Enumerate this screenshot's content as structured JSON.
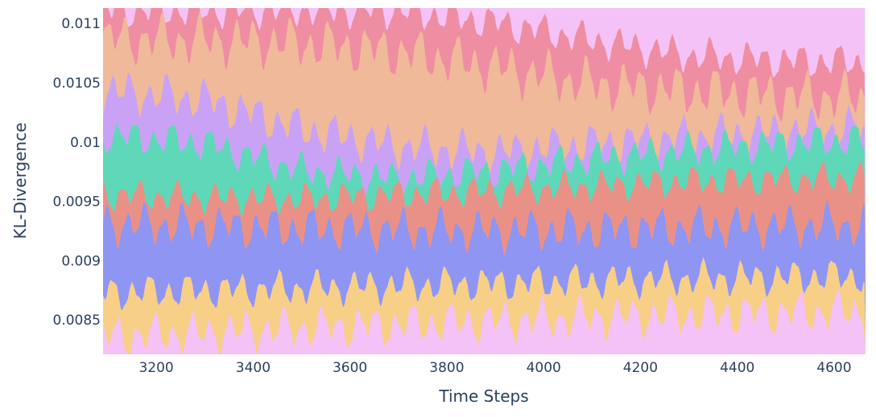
{
  "chart_data": {
    "type": "area",
    "xlabel": "Time Steps",
    "ylabel": "KL-Divergence",
    "xlim": [
      3090,
      4665
    ],
    "ylim": [
      0.00821,
      0.01113
    ],
    "x_ticks": [
      3200,
      3400,
      3600,
      3800,
      4000,
      4200,
      4400,
      4600
    ],
    "y_ticks": [
      0.0085,
      0.009,
      0.0095,
      0.01,
      0.0105,
      0.011
    ],
    "x_tick_labels": [
      "3200",
      "3400",
      "3600",
      "3800",
      "4000",
      "4200",
      "4400",
      "4600"
    ],
    "y_tick_labels": [
      "0.0085",
      "0.009",
      "0.0095",
      "0.01",
      "0.0105",
      "0.011"
    ],
    "grid": false,
    "legend": "none",
    "series_colors": [
      "#ef8da3",
      "#8f95f2",
      "#73d8f0",
      "#f8cf87",
      "#c9a2f6",
      "#5ed8b8",
      "#f0b999",
      "#f4c2f6",
      "#e99187",
      "#c7e7ae"
    ],
    "layers": [
      {
        "color": "#f4c2f6",
        "boundary": [
          [
            3090,
            0.00835
          ],
          [
            3300,
            0.00838
          ],
          [
            3500,
            0.00842
          ],
          [
            3700,
            0.00845
          ],
          [
            3900,
            0.00848
          ],
          [
            4100,
            0.00851
          ],
          [
            4300,
            0.00853
          ],
          [
            4500,
            0.00855
          ],
          [
            4665,
            0.00856
          ]
        ],
        "wiggle": 0.00022
      },
      {
        "color": "#f8cf87",
        "boundary": [
          [
            3090,
            0.00872
          ],
          [
            3300,
            0.00874
          ],
          [
            3500,
            0.00876
          ],
          [
            3700,
            0.00878
          ],
          [
            3900,
            0.0088
          ],
          [
            4100,
            0.00882
          ],
          [
            4300,
            0.00884
          ],
          [
            4500,
            0.00885
          ],
          [
            4665,
            0.00886
          ]
        ],
        "wiggle": 0.00018
      },
      {
        "color": "#8f95f2",
        "boundary": [
          [
            3090,
            0.0093
          ],
          [
            3300,
            0.00928
          ],
          [
            3500,
            0.00926
          ],
          [
            3700,
            0.00925
          ],
          [
            3900,
            0.00924
          ],
          [
            4100,
            0.00925
          ],
          [
            4300,
            0.00927
          ],
          [
            4500,
            0.00928
          ],
          [
            4665,
            0.00929
          ]
        ],
        "wiggle": 0.00022
      },
      {
        "color": "#e99187",
        "boundary": [
          [
            3090,
            0.00955
          ],
          [
            3300,
            0.00952
          ],
          [
            3500,
            0.00951
          ],
          [
            3700,
            0.00955
          ],
          [
            3900,
            0.00958
          ],
          [
            4100,
            0.00962
          ],
          [
            4300,
            0.00966
          ],
          [
            4500,
            0.00968
          ],
          [
            4665,
            0.00969
          ]
        ],
        "wiggle": 0.00016
      },
      {
        "color": "#5ed8b8",
        "boundary": [
          [
            3090,
            0.01005
          ],
          [
            3300,
            0.00998
          ],
          [
            3500,
            0.00975
          ],
          [
            3700,
            0.00968
          ],
          [
            3900,
            0.00975
          ],
          [
            4100,
            0.00985
          ],
          [
            4300,
            0.00992
          ],
          [
            4500,
            0.00998
          ],
          [
            4665,
            0.01001
          ]
        ],
        "wiggle": 0.00018
      },
      {
        "color": "#c9a2f6",
        "boundary": [
          [
            3090,
            0.01042
          ],
          [
            3300,
            0.01035
          ],
          [
            3500,
            0.0101
          ],
          [
            3700,
            0.00995
          ],
          [
            3900,
            0.0099
          ],
          [
            4100,
            0.00997
          ],
          [
            4300,
            0.01003
          ],
          [
            4500,
            0.01008
          ],
          [
            4665,
            0.0101
          ]
        ],
        "wiggle": 0.00022
      },
      {
        "color": "#f0b999",
        "boundary": [
          [
            3090,
            0.01086
          ],
          [
            3300,
            0.01085
          ],
          [
            3500,
            0.01082
          ],
          [
            3700,
            0.01075
          ],
          [
            3900,
            0.01062
          ],
          [
            4100,
            0.01048
          ],
          [
            4300,
            0.01042
          ],
          [
            4500,
            0.01038
          ],
          [
            4665,
            0.01036
          ]
        ],
        "wiggle": 0.00026
      },
      {
        "color": "#ef8da3",
        "boundary": [
          [
            3090,
            0.0111
          ],
          [
            3300,
            0.0111
          ],
          [
            3500,
            0.0111
          ],
          [
            3700,
            0.0111
          ],
          [
            3900,
            0.011
          ],
          [
            4100,
            0.01085
          ],
          [
            4300,
            0.01072
          ],
          [
            4500,
            0.01068
          ],
          [
            4665,
            0.01066
          ]
        ],
        "wiggle": 0.00018
      },
      {
        "color": "#f4c2f6",
        "boundary": [
          [
            3090,
            0.0112
          ],
          [
            3665,
            0.0112
          ],
          [
            4665,
            0.0112
          ]
        ],
        "wiggle": 0.0
      }
    ]
  }
}
